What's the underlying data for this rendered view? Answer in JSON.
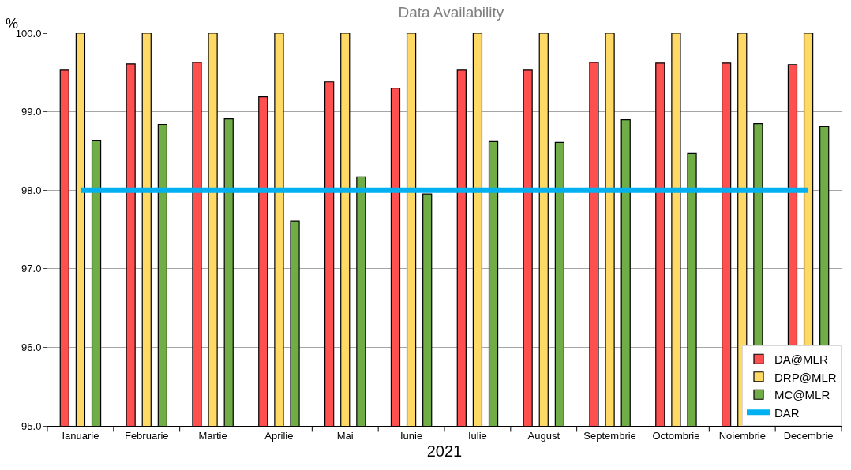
{
  "chart_data": {
    "type": "bar",
    "title": "Data Availability",
    "xlabel": "2021",
    "ylabel": "%",
    "categories": [
      "Ianuarie",
      "Februarie",
      "Martie",
      "Aprilie",
      "Mai",
      "Iunie",
      "Iulie",
      "August",
      "Septembrie",
      "Octombrie",
      "Noiembrie",
      "Decembrie"
    ],
    "series": [
      {
        "name": "DA@MLR",
        "color": "#ff5050",
        "values": [
          99.53,
          99.61,
          99.63,
          99.19,
          99.38,
          99.3,
          99.53,
          99.53,
          99.63,
          99.62,
          99.62,
          99.6
        ]
      },
      {
        "name": "DRP@MLR",
        "color": "#ffd966",
        "values": [
          100,
          100,
          100,
          100,
          100,
          100,
          100,
          100,
          100,
          100,
          100,
          100
        ]
      },
      {
        "name": "MC@MLR",
        "color": "#70ad47",
        "values": [
          98.63,
          98.84,
          98.91,
          97.61,
          98.17,
          97.95,
          98.62,
          98.61,
          98.9,
          98.47,
          98.85,
          98.81
        ]
      },
      {
        "name": "DAR",
        "type": "line",
        "color": "#00b0f0",
        "values": [
          98,
          98,
          98,
          98,
          98,
          98,
          98,
          98,
          98,
          98,
          98,
          98
        ]
      }
    ],
    "ylim": [
      95,
      100
    ],
    "yticks": [
      {
        "value": 95,
        "label": "95.0"
      },
      {
        "value": 96,
        "label": "96.0"
      },
      {
        "value": 97,
        "label": "97.0"
      },
      {
        "value": 98,
        "label": "98.0"
      },
      {
        "value": 99,
        "label": "99.0"
      },
      {
        "value": 100,
        "label": "100.0"
      }
    ],
    "grid": "y",
    "legend": "bottom right"
  }
}
